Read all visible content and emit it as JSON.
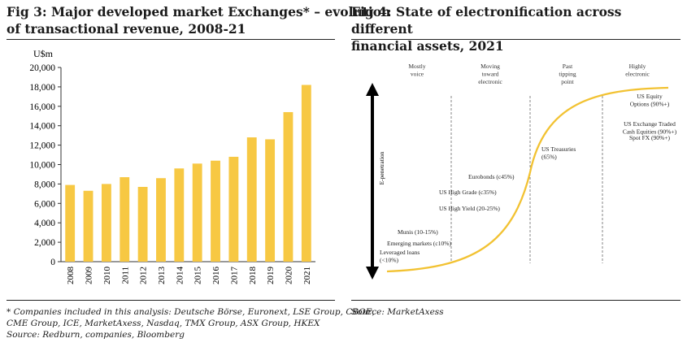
{
  "fig3": {
    "title_line1": "Fig 3: Major developed market Exchanges* – evolution",
    "title_line2": "of transactional revenue, 2008-21",
    "footnote_line1": "* Companies included in this analysis: Deutsche Börse, Euronext, LSE Group, CBOE,",
    "footnote_line2": "CME Group, ICE, MarketAxess, Nasdaq, TMX Group, ASX Group, HKEX",
    "source": "Source: Redburn, companies, Bloomberg"
  },
  "fig4": {
    "title_line1": "Fig 4: State of electronification across different",
    "title_line2": "financial assets, 2021",
    "source": "Source: MarketAxess",
    "axis_label": "E-penetration",
    "stages": [
      {
        "lines": [
          "Mostly",
          "voice"
        ]
      },
      {
        "lines": [
          "Moving",
          "toward",
          "electronic"
        ]
      },
      {
        "lines": [
          "Past",
          "tipping",
          "point"
        ]
      },
      {
        "lines": [
          "Highly",
          "electronic"
        ]
      }
    ],
    "assets": [
      {
        "lines": [
          "Leveraged loans",
          "(<10%)"
        ]
      },
      {
        "lines": [
          "Emerging markets (c10%)"
        ]
      },
      {
        "lines": [
          "Munis (10-15%)"
        ]
      },
      {
        "lines": [
          "US High Yield (20-25%)"
        ]
      },
      {
        "lines": [
          "US High Grade (c35%)"
        ]
      },
      {
        "lines": [
          "Eurobonds (c45%)"
        ]
      },
      {
        "lines": [
          "US Treasuries",
          "(65%)"
        ]
      },
      {
        "lines": [
          "Spot FX (90%+)"
        ]
      },
      {
        "lines": [
          "US Exchange Traded",
          "Cash Equities (90%+)"
        ]
      },
      {
        "lines": [
          "US Equity",
          "Options (90%+)"
        ]
      }
    ],
    "colors": {
      "curve": "#f2c232",
      "arrow": "#000000"
    }
  },
  "chart_data": [
    {
      "type": "bar",
      "title": "Fig 3: Major developed market Exchanges* – evolution of transactional revenue, 2008-21",
      "ylabel": "U$m",
      "xlabel": "",
      "categories": [
        "2008",
        "2009",
        "2010",
        "2011",
        "2012",
        "2013",
        "2014",
        "2015",
        "2016",
        "2017",
        "2018",
        "2019",
        "2020",
        "2021"
      ],
      "values": [
        7900,
        7300,
        8000,
        8700,
        7700,
        8600,
        9600,
        10100,
        10400,
        10800,
        12800,
        12600,
        15400,
        18200
      ],
      "ylim": [
        0,
        20000
      ],
      "yticks": [
        "0",
        "2,000",
        "4,000",
        "6,000",
        "8,000",
        "10,000",
        "12,000",
        "14,000",
        "16,000",
        "18,000",
        "20,000"
      ],
      "grid": false,
      "legend": "none",
      "color": "#f7c843"
    }
  ]
}
